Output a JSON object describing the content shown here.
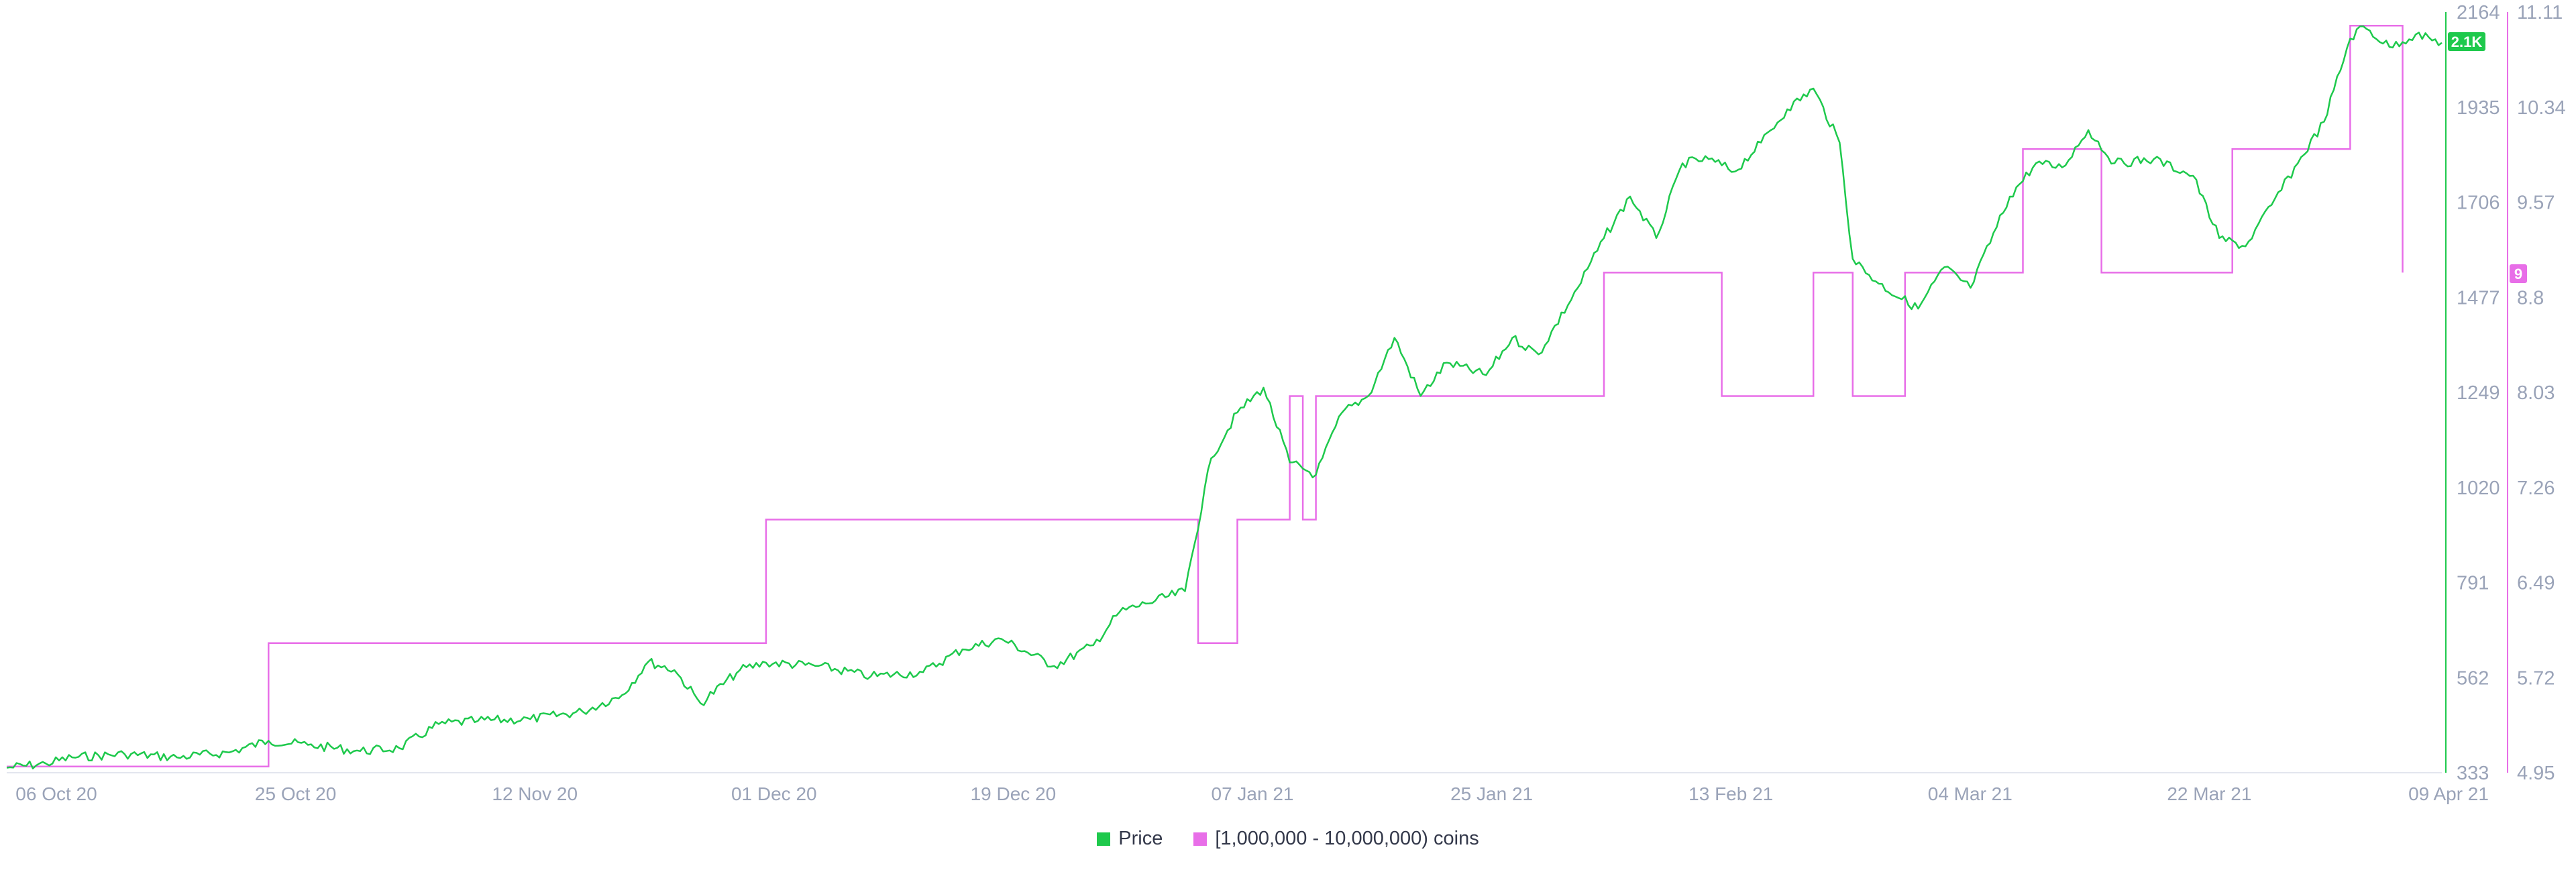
{
  "chart_data": {
    "type": "line",
    "title": "",
    "x_ticks": [
      "06 Oct 20",
      "25 Oct 20",
      "12 Nov 20",
      "01 Dec 20",
      "19 Dec 20",
      "07 Jan 21",
      "25 Jan 21",
      "13 Feb 21",
      "04 Mar 21",
      "22 Mar 21",
      "09 Apr 21"
    ],
    "x_range": [
      "2020-10-05",
      "2021-04-09"
    ],
    "y_left": {
      "label": "",
      "ticks": [
        "2164",
        "1935",
        "1706",
        "1477",
        "1249",
        "1020",
        "791",
        "562",
        "333"
      ],
      "range": [
        333,
        2164
      ],
      "current_badge": "2.1K"
    },
    "y_right": {
      "label": "",
      "ticks": [
        "11.11",
        "10.34",
        "9.57",
        "8.8",
        "8.03",
        "7.26",
        "6.49",
        "5.72",
        "4.95"
      ],
      "range": [
        4.95,
        11.11
      ],
      "current_badge": "9"
    },
    "grid": false,
    "legend_position": "bottom-center",
    "series": [
      {
        "name": "Price",
        "axis": "left",
        "color": "#1ec94c",
        "points": [
          [
            "2020-10-05",
            345
          ],
          [
            "2020-10-08",
            355
          ],
          [
            "2020-10-10",
            370
          ],
          [
            "2020-10-14",
            378
          ],
          [
            "2020-10-18",
            370
          ],
          [
            "2020-10-22",
            382
          ],
          [
            "2020-10-25",
            410
          ],
          [
            "2020-10-28",
            400
          ],
          [
            "2020-11-01",
            385
          ],
          [
            "2020-11-04",
            392
          ],
          [
            "2020-11-07",
            450
          ],
          [
            "2020-11-10",
            458
          ],
          [
            "2020-11-14",
            462
          ],
          [
            "2020-11-18",
            480
          ],
          [
            "2020-11-21",
            520
          ],
          [
            "2020-11-23",
            600
          ],
          [
            "2020-11-25",
            580
          ],
          [
            "2020-11-27",
            500
          ],
          [
            "2020-11-30",
            580
          ],
          [
            "2020-12-02",
            598
          ],
          [
            "2020-12-06",
            590
          ],
          [
            "2020-12-10",
            565
          ],
          [
            "2020-12-14",
            575
          ],
          [
            "2020-12-17",
            630
          ],
          [
            "2020-12-20",
            655
          ],
          [
            "2020-12-24",
            590
          ],
          [
            "2020-12-27",
            640
          ],
          [
            "2020-12-29",
            720
          ],
          [
            "2020-12-31",
            740
          ],
          [
            "2021-01-03",
            770
          ],
          [
            "2021-01-05",
            1090
          ],
          [
            "2021-01-07",
            1200
          ],
          [
            "2021-01-09",
            1260
          ],
          [
            "2021-01-11",
            1080
          ],
          [
            "2021-01-13",
            1050
          ],
          [
            "2021-01-15",
            1200
          ],
          [
            "2021-01-17",
            1240
          ],
          [
            "2021-01-19",
            1380
          ],
          [
            "2021-01-21",
            1240
          ],
          [
            "2021-01-23",
            1320
          ],
          [
            "2021-01-26",
            1290
          ],
          [
            "2021-01-28",
            1380
          ],
          [
            "2021-01-30",
            1340
          ],
          [
            "2021-02-02",
            1500
          ],
          [
            "2021-02-04",
            1620
          ],
          [
            "2021-02-06",
            1720
          ],
          [
            "2021-02-08",
            1620
          ],
          [
            "2021-02-10",
            1800
          ],
          [
            "2021-02-12",
            1810
          ],
          [
            "2021-02-14",
            1780
          ],
          [
            "2021-02-16",
            1850
          ],
          [
            "2021-02-18",
            1930
          ],
          [
            "2021-02-20",
            1980
          ],
          [
            "2021-02-22",
            1850
          ],
          [
            "2021-02-23",
            1570
          ],
          [
            "2021-02-25",
            1510
          ],
          [
            "2021-02-28",
            1450
          ],
          [
            "2021-03-02",
            1550
          ],
          [
            "2021-03-04",
            1500
          ],
          [
            "2021-03-07",
            1720
          ],
          [
            "2021-03-09",
            1800
          ],
          [
            "2021-03-11",
            1790
          ],
          [
            "2021-03-13",
            1880
          ],
          [
            "2021-03-15",
            1800
          ],
          [
            "2021-03-18",
            1810
          ],
          [
            "2021-03-21",
            1770
          ],
          [
            "2021-03-23",
            1620
          ],
          [
            "2021-03-25",
            1600
          ],
          [
            "2021-03-27",
            1700
          ],
          [
            "2021-03-29",
            1800
          ],
          [
            "2021-03-31",
            1900
          ],
          [
            "2021-04-02",
            2100
          ],
          [
            "2021-04-03",
            2130
          ],
          [
            "2021-04-05",
            2080
          ],
          [
            "2021-04-07",
            2110
          ],
          [
            "2021-04-09",
            2090
          ]
        ]
      },
      {
        "name": "[1,000,000 - 10,000,000) coins",
        "axis": "right",
        "color": "#e86ee8",
        "step": true,
        "points": [
          [
            "2020-10-05",
            5.0
          ],
          [
            "2020-10-25",
            6.0
          ],
          [
            "2020-12-02",
            7.0
          ],
          [
            "2021-01-04",
            6.0
          ],
          [
            "2021-01-07",
            7.0
          ],
          [
            "2021-01-11",
            8.0
          ],
          [
            "2021-01-12",
            7.0
          ],
          [
            "2021-01-13",
            8.0
          ],
          [
            "2021-02-04",
            9.0
          ],
          [
            "2021-02-13",
            8.0
          ],
          [
            "2021-02-20",
            9.0
          ],
          [
            "2021-02-23",
            8.0
          ],
          [
            "2021-02-27",
            9.0
          ],
          [
            "2021-03-08",
            10.0
          ],
          [
            "2021-03-14",
            9.0
          ],
          [
            "2021-03-24",
            10.0
          ],
          [
            "2021-04-02",
            11.0
          ],
          [
            "2021-04-06",
            9.0
          ]
        ]
      }
    ]
  }
}
